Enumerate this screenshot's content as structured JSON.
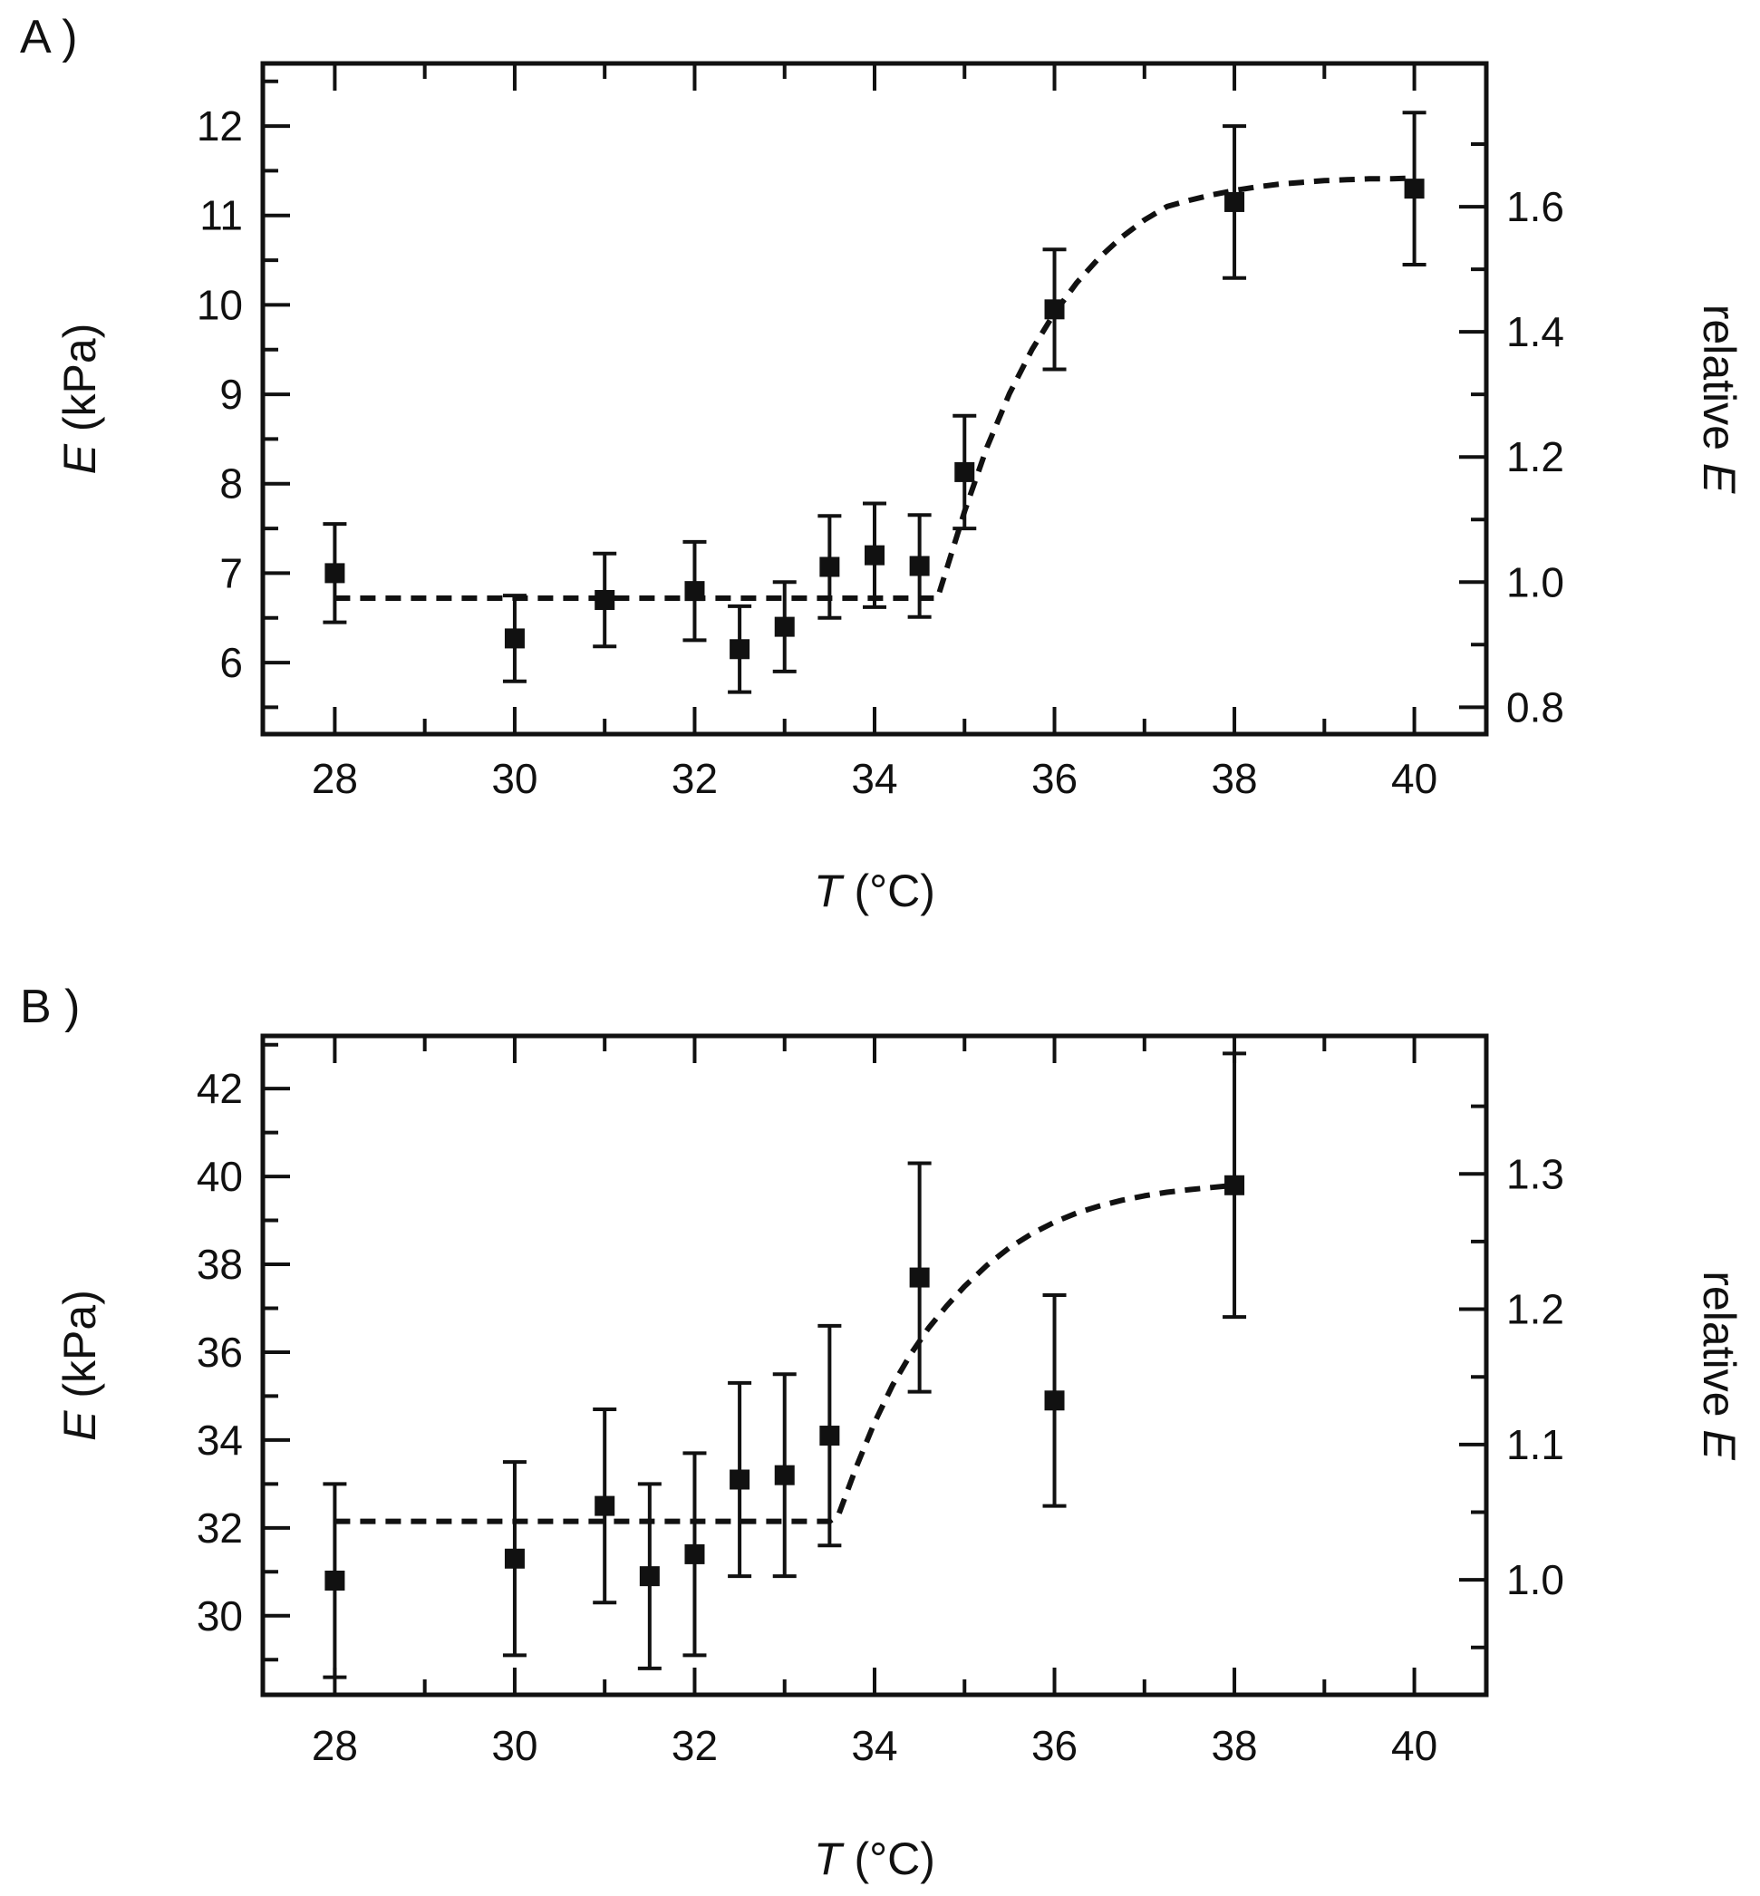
{
  "chart_data": [
    {
      "type": "scatter",
      "panel_label": "A )",
      "title": "",
      "xlabel_italic": "T",
      "xlabel_unit": " (°C)",
      "ylabel_italic": "E",
      "ylabel_unit": " (kPa)",
      "y2label_prefix": "relative ",
      "y2label_italic": "E",
      "xlim": [
        27.2,
        40.8
      ],
      "ylim": [
        5.2,
        12.7
      ],
      "y2lim": [
        0.757,
        1.829
      ],
      "x_ticks": [
        28,
        30,
        32,
        34,
        36,
        38,
        40
      ],
      "x_tick_labels": [
        "28",
        "30",
        "32",
        "34",
        "36",
        "38",
        "40"
      ],
      "y_ticks": [
        6,
        7,
        8,
        9,
        10,
        11,
        12
      ],
      "y_tick_labels": [
        "6",
        "7",
        "8",
        "9",
        "10",
        "11",
        "12"
      ],
      "y2_ticks": [
        0.8,
        1.0,
        1.2,
        1.4,
        1.6
      ],
      "y2_tick_labels": [
        "0.8",
        "1.0",
        "1.2",
        "1.4",
        "1.6"
      ],
      "x": [
        28,
        30,
        31,
        32,
        32.5,
        33,
        33.5,
        34,
        34.5,
        35,
        36,
        38,
        40
      ],
      "y": [
        7.0,
        6.27,
        6.7,
        6.8,
        6.15,
        6.4,
        7.07,
        7.2,
        7.08,
        8.13,
        9.95,
        11.15,
        11.3
      ],
      "y_err": [
        0.55,
        0.48,
        0.52,
        0.55,
        0.48,
        0.5,
        0.57,
        0.58,
        0.57,
        0.63,
        0.67,
        0.85,
        0.85
      ],
      "fit": {
        "style": "dashed",
        "x": [
          28,
          28.5,
          29,
          29.5,
          30,
          30.5,
          31,
          31.5,
          32,
          32.5,
          33,
          33.5,
          34,
          34.5,
          34.7,
          35,
          35.25,
          35.5,
          35.75,
          36,
          36.25,
          36.5,
          36.75,
          37,
          37.25,
          37.5,
          37.75,
          38,
          38.25,
          38.5,
          38.75,
          39,
          39.25,
          39.5,
          39.75,
          40
        ],
        "y": [
          6.72,
          6.72,
          6.72,
          6.72,
          6.72,
          6.72,
          6.72,
          6.72,
          6.72,
          6.72,
          6.72,
          6.72,
          6.72,
          6.72,
          6.72,
          7.69,
          8.41,
          9.01,
          9.5,
          9.91,
          10.25,
          10.53,
          10.76,
          10.95,
          11.1,
          11.17,
          11.23,
          11.28,
          11.32,
          11.35,
          11.37,
          11.39,
          11.4,
          11.41,
          11.41,
          11.42
        ]
      }
    },
    {
      "type": "scatter",
      "panel_label": "B )",
      "title": "",
      "xlabel_italic": "T",
      "xlabel_unit": " (°C)",
      "ylabel_italic": "E",
      "ylabel_unit": " (kPa)",
      "y2label_prefix": "relative ",
      "y2label_italic": "E",
      "xlim": [
        27.2,
        40.8
      ],
      "ylim": [
        28.2,
        43.2
      ],
      "y2lim": [
        0.915,
        1.402
      ],
      "x_ticks": [
        28,
        30,
        32,
        34,
        36,
        38,
        40
      ],
      "x_tick_labels": [
        "28",
        "30",
        "32",
        "34",
        "36",
        "38",
        "40"
      ],
      "y_ticks": [
        30,
        32,
        34,
        36,
        38,
        40,
        42
      ],
      "y_tick_labels": [
        "30",
        "32",
        "34",
        "36",
        "38",
        "40",
        "42"
      ],
      "y2_ticks": [
        1.0,
        1.1,
        1.2,
        1.3
      ],
      "y2_tick_labels": [
        "1.0",
        "1.1",
        "1.2",
        "1.3"
      ],
      "x": [
        28,
        30,
        31,
        31.5,
        32,
        32.5,
        33,
        33.5,
        34.5,
        36,
        38
      ],
      "y": [
        30.8,
        31.3,
        32.5,
        30.9,
        31.4,
        33.1,
        33.2,
        34.1,
        37.7,
        34.9,
        39.8
      ],
      "y_err": [
        2.2,
        2.2,
        2.2,
        2.1,
        2.3,
        2.2,
        2.3,
        2.5,
        2.6,
        2.4,
        3.0
      ],
      "fit": {
        "style": "dashed",
        "x": [
          28,
          29,
          30,
          31,
          32,
          33,
          33.5,
          33.6,
          33.8,
          34,
          34.2,
          34.4,
          34.6,
          34.8,
          35,
          35.25,
          35.5,
          35.75,
          36,
          36.25,
          36.5,
          36.75,
          37,
          37.25,
          37.5,
          37.75,
          38
        ],
        "y": [
          32.15,
          32.15,
          32.15,
          32.15,
          32.15,
          32.15,
          32.15,
          32.3,
          33.4,
          34.4,
          35.25,
          35.95,
          36.55,
          37.05,
          37.5,
          37.98,
          38.38,
          38.7,
          38.96,
          39.17,
          39.33,
          39.46,
          39.56,
          39.64,
          39.7,
          39.75,
          39.8
        ]
      }
    }
  ]
}
